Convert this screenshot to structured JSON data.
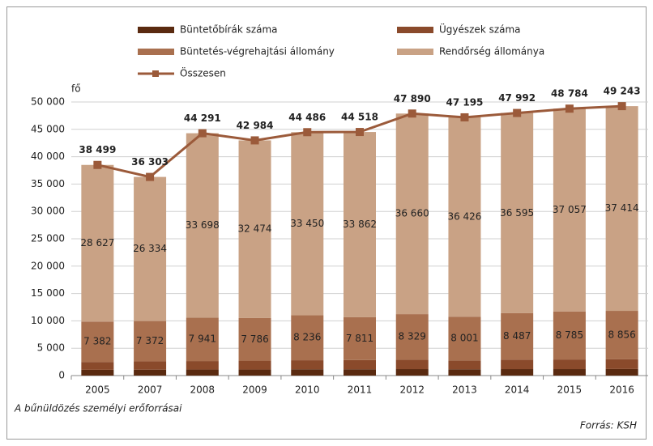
{
  "chart_data": {
    "type": "stacked_bar_line",
    "title": "A bűnüldözés személyi erőforrásai",
    "source": "Forrás: KSH",
    "y_label": "fő",
    "categories": [
      "2005",
      "2007",
      "2008",
      "2009",
      "2010",
      "2011",
      "2012",
      "2013",
      "2014",
      "2015",
      "2016"
    ],
    "series": [
      {
        "name": "Büntetőbírák száma",
        "color": "#5a2a10",
        "values": [
          1050,
          1080,
          1100,
          1100,
          1150,
          1150,
          1180,
          1150,
          1180,
          1180,
          1200
        ]
      },
      {
        "name": "Ügyészek száma",
        "color": "#8a4a2b",
        "values": [
          1440,
          1517,
          1552,
          1624,
          1650,
          1695,
          1721,
          1618,
          1730,
          1762,
          1773
        ]
      },
      {
        "name": "Büntetés-végrehajtási állomány",
        "color": "#a9704f",
        "values": [
          7382,
          7372,
          7941,
          7786,
          8236,
          7811,
          8329,
          8001,
          8487,
          8785,
          8856
        ],
        "value_labels": [
          "7 382",
          "7 372",
          "7 941",
          "7 786",
          "8 236",
          "7 811",
          "8 329",
          "8 001",
          "8 487",
          "8 785",
          "8 856"
        ]
      },
      {
        "name": "Rendőrség állománya",
        "color": "#c9a285",
        "values": [
          28627,
          26334,
          33698,
          32474,
          33450,
          33862,
          36660,
          36426,
          36595,
          37057,
          37414
        ],
        "value_labels": [
          "28 627",
          "26 334",
          "33 698",
          "32 474",
          "33 450",
          "33 862",
          "36 660",
          "36 426",
          "36 595",
          "37 057",
          "37 414"
        ]
      }
    ],
    "line": {
      "name": "Összesen",
      "color": "#9b5a3a",
      "values": [
        38499,
        36303,
        44291,
        42984,
        44486,
        44518,
        47890,
        47195,
        47992,
        48784,
        49243
      ],
      "value_labels": [
        "38 499",
        "36 303",
        "44 291",
        "42 984",
        "44 486",
        "44 518",
        "47 890",
        "47 195",
        "47 992",
        "48 784",
        "49 243"
      ]
    },
    "ylim": [
      0,
      50000
    ],
    "yticks": [
      0,
      {
        "value": 5000,
        "label": "5 000"
      },
      {
        "value": 10000,
        "label": "10 000"
      },
      {
        "value": 15000,
        "label": "15 000"
      },
      {
        "value": 20000,
        "label": "20 000"
      },
      {
        "value": 25000,
        "label": "25 000"
      },
      {
        "value": 30000,
        "label": "30 000"
      },
      {
        "value": 35000,
        "label": "35 000"
      },
      {
        "value": 40000,
        "label": "40 000"
      },
      {
        "value": 45000,
        "label": "45 000"
      },
      {
        "value": 50000,
        "label": "50 000"
      }
    ],
    "grid": true
  }
}
